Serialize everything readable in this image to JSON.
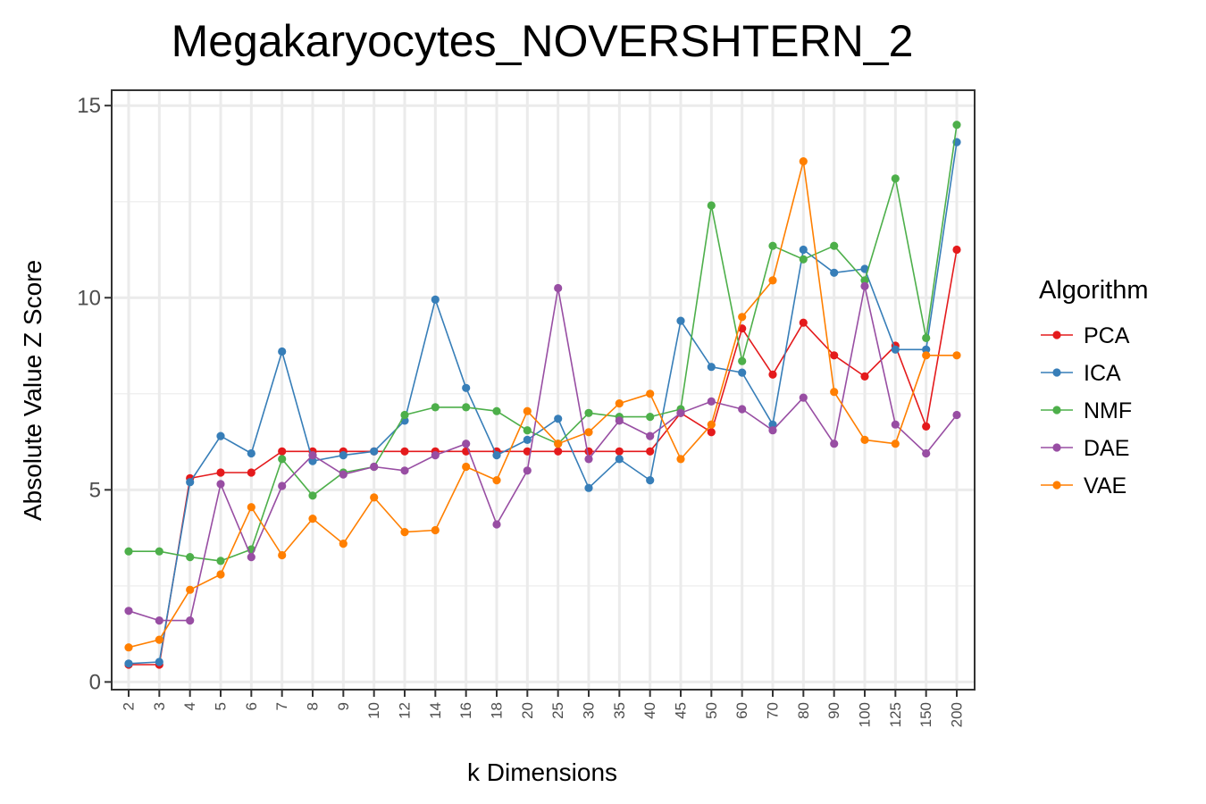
{
  "chart_data": {
    "type": "line",
    "title": "Megakaryocytes_NOVERSHTERN_2",
    "xlabel": "k Dimensions",
    "ylabel": "Absolute Value Z Score",
    "categories": [
      "2",
      "3",
      "4",
      "5",
      "6",
      "7",
      "8",
      "9",
      "10",
      "12",
      "14",
      "16",
      "18",
      "20",
      "25",
      "30",
      "35",
      "40",
      "45",
      "50",
      "60",
      "70",
      "80",
      "90",
      "100",
      "125",
      "150",
      "200"
    ],
    "ylim": [
      -0.2,
      15.4
    ],
    "yticks": [
      "0",
      "5",
      "10",
      "15"
    ],
    "grid": true,
    "legend": {
      "title": "Algorithm",
      "position": "right"
    },
    "series": [
      {
        "name": "PCA",
        "color": "#e41a1c",
        "values": [
          0.45,
          0.45,
          5.3,
          5.45,
          5.45,
          6.0,
          6.0,
          6.0,
          6.0,
          6.0,
          6.0,
          6.0,
          6.0,
          6.0,
          6.0,
          6.0,
          6.0,
          6.0,
          7.0,
          6.5,
          9.2,
          8.0,
          9.35,
          8.5,
          7.95,
          8.75,
          6.65,
          11.25
        ]
      },
      {
        "name": "ICA",
        "color": "#377eb8",
        "values": [
          0.48,
          0.52,
          5.2,
          6.4,
          5.95,
          8.6,
          5.75,
          5.9,
          6.0,
          6.8,
          9.95,
          7.65,
          5.9,
          6.3,
          6.85,
          5.05,
          5.8,
          5.25,
          9.4,
          8.2,
          8.05,
          6.7,
          11.25,
          10.65,
          10.75,
          8.65,
          8.65,
          14.05
        ]
      },
      {
        "name": "NMF",
        "color": "#4daf4a",
        "values": [
          3.4,
          3.4,
          3.25,
          3.15,
          3.45,
          5.8,
          4.85,
          5.45,
          5.6,
          6.95,
          7.15,
          7.15,
          7.05,
          6.55,
          6.2,
          7.0,
          6.9,
          6.9,
          7.1,
          12.4,
          8.35,
          11.35,
          11.0,
          11.35,
          10.45,
          13.1,
          8.95,
          14.5
        ]
      },
      {
        "name": "DAE",
        "color": "#984ea3",
        "values": [
          1.85,
          1.6,
          1.6,
          5.15,
          3.25,
          5.1,
          5.9,
          5.4,
          5.6,
          5.5,
          5.9,
          6.2,
          4.1,
          5.5,
          10.25,
          5.8,
          6.8,
          6.4,
          7.0,
          7.3,
          7.1,
          6.55,
          7.4,
          6.2,
          10.3,
          6.7,
          5.95,
          6.95
        ]
      },
      {
        "name": "VAE",
        "color": "#ff7f00",
        "values": [
          0.9,
          1.1,
          2.4,
          2.8,
          4.55,
          3.3,
          4.25,
          3.6,
          4.8,
          3.9,
          3.95,
          5.6,
          5.25,
          7.05,
          6.2,
          6.5,
          7.25,
          7.5,
          5.8,
          6.7,
          9.5,
          10.45,
          13.55,
          7.55,
          6.3,
          6.2,
          8.5,
          8.5
        ]
      }
    ]
  }
}
